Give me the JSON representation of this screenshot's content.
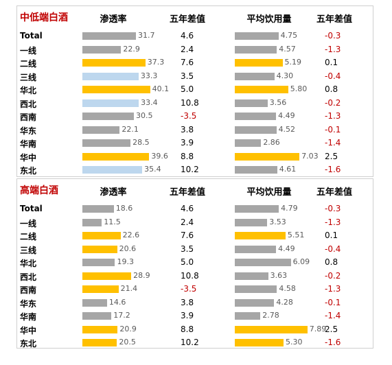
{
  "colors": {
    "gray": "#a6a6a6",
    "yellow": "#ffc000",
    "lightblue": "#bdd7ee",
    "red": "#c00000"
  },
  "chart_data": [
    {
      "type": "bar",
      "title": "中低端白酒",
      "headers": [
        "渗透率",
        "五年差值",
        "平均饮用量",
        "五年差值"
      ],
      "categories": [
        "Total",
        "一线",
        "二线",
        "三线",
        "华北",
        "西北",
        "西南",
        "华东",
        "华南",
        "华中",
        "东北"
      ],
      "series": [
        {
          "name": "渗透率",
          "values": [
            31.7,
            22.9,
            37.3,
            33.3,
            40.1,
            33.4,
            30.5,
            22.1,
            28.5,
            39.6,
            35.4
          ],
          "colors": [
            "gray",
            "gray",
            "yellow",
            "lightblue",
            "yellow",
            "lightblue",
            "gray",
            "gray",
            "gray",
            "yellow",
            "lightblue"
          ]
        },
        {
          "name": "五年差值",
          "values": [
            "4.6",
            "2.4",
            "7.6",
            "3.5",
            "5.0",
            "10.8",
            "-3.5",
            "3.8",
            "3.9",
            "8.8",
            "10.2"
          ]
        },
        {
          "name": "平均饮用量",
          "values": [
            4.75,
            4.57,
            5.19,
            4.3,
            5.8,
            3.56,
            4.49,
            4.52,
            2.86,
            7.03,
            4.61
          ],
          "colors": [
            "gray",
            "gray",
            "yellow",
            "gray",
            "yellow",
            "gray",
            "gray",
            "gray",
            "gray",
            "yellow",
            "gray"
          ]
        },
        {
          "name": "五年差值",
          "values": [
            "-0.3",
            "-1.3",
            "0.1",
            "-0.4",
            "0.8",
            "-0.2",
            "-1.3",
            "-0.1",
            "-1.4",
            "2.5",
            "-1.6"
          ]
        }
      ]
    },
    {
      "type": "bar",
      "title": "高端白酒",
      "headers": [
        "渗透率",
        "五年差值",
        "平均饮用量",
        "五年差值"
      ],
      "categories": [
        "Total",
        "一线",
        "二线",
        "三线",
        "华北",
        "西北",
        "西南",
        "华东",
        "华南",
        "华中",
        "东北"
      ],
      "series": [
        {
          "name": "渗透率",
          "values": [
            18.6,
            11.5,
            22.6,
            20.6,
            19.3,
            28.9,
            21.4,
            14.6,
            17.2,
            20.9,
            20.5
          ],
          "colors": [
            "gray",
            "gray",
            "yellow",
            "yellow",
            "gray",
            "yellow",
            "yellow",
            "gray",
            "gray",
            "yellow",
            "yellow"
          ]
        },
        {
          "name": "五年差值",
          "values": [
            "4.6",
            "2.4",
            "7.6",
            "3.5",
            "5.0",
            "10.8",
            "-3.5",
            "3.8",
            "3.9",
            "8.8",
            "10.2"
          ]
        },
        {
          "name": "平均饮用量",
          "values": [
            4.79,
            3.53,
            5.51,
            4.49,
            6.09,
            3.63,
            4.58,
            4.28,
            2.78,
            7.89,
            5.3
          ],
          "colors": [
            "gray",
            "gray",
            "yellow",
            "gray",
            "gray",
            "gray",
            "gray",
            "gray",
            "gray",
            "yellow",
            "yellow"
          ]
        },
        {
          "name": "五年差值",
          "values": [
            "-0.3",
            "-1.3",
            "0.1",
            "-0.4",
            "0.8",
            "-0.2",
            "-1.3",
            "-0.1",
            "-1.4",
            "2.5",
            "-1.6"
          ]
        }
      ]
    }
  ]
}
